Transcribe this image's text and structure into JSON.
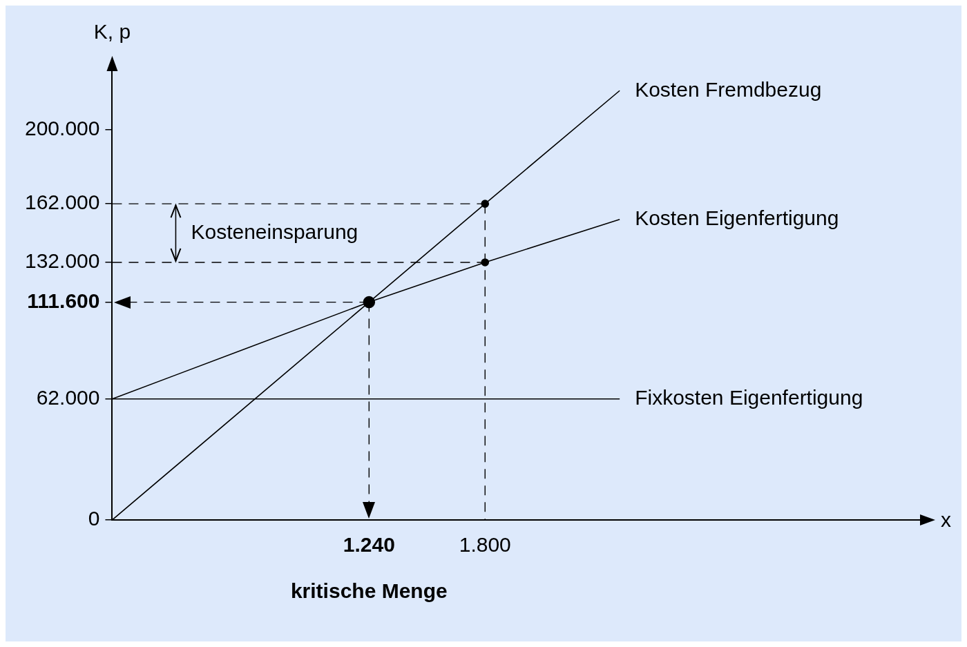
{
  "chart_data": {
    "type": "line",
    "xlabel": "x",
    "ylabel": "K, p",
    "xlim": [
      0,
      3900
    ],
    "ylim": [
      0,
      230000
    ],
    "xticks": [
      {
        "value": 1240,
        "label": "1.240"
      },
      {
        "value": 1800,
        "label": "1.800"
      }
    ],
    "yticks": [
      0,
      {
        "value": 62000,
        "label": "62.000"
      },
      {
        "value": 111600,
        "label": "111.600"
      },
      {
        "value": 132000,
        "label": "132.000"
      },
      {
        "value": 162000,
        "label": "162.000"
      },
      {
        "value": 200000,
        "label": "200.000"
      }
    ],
    "grid": false,
    "legend": false,
    "line_style": "solid",
    "series": [
      {
        "name": "Kosten Fremdbezug",
        "color": "#000000",
        "x": [
          0,
          1240,
          1800,
          2450
        ],
        "values": [
          0,
          111600,
          162000,
          220000
        ]
      },
      {
        "name": "Kosten Eigenfertigung",
        "color": "#000000",
        "x": [
          0,
          1240,
          1800,
          2450
        ],
        "values": [
          62000,
          111600,
          132000,
          154000
        ]
      },
      {
        "name": "Fixkosten Eigenfertigung",
        "color": "#000000",
        "x": [
          0,
          2450
        ],
        "values": [
          62000,
          62000
        ]
      },
      {
        "type": "scatter",
        "color": "#000000",
        "x": [
          1240
        ],
        "values": [
          111600
        ]
      },
      {
        "type": "scatter",
        "color": "#000000",
        "x": [
          1800,
          1800
        ],
        "values": [
          162000,
          132000
        ]
      }
    ],
    "ref_lines": [
      {
        "axis": "y",
        "value": 162000,
        "line_style": "dashed"
      },
      {
        "axis": "y",
        "value": 132000,
        "line_style": "dashed"
      },
      {
        "axis": "y",
        "value": 111600,
        "line_style": "dashed"
      },
      {
        "axis": "x",
        "value": 1240,
        "line_style": "dashed"
      },
      {
        "axis": "x",
        "value": 1800,
        "line_style": "dashed"
      }
    ],
    "annotations": [
      "Kosteneinsparung",
      "kritische Menge"
    ]
  }
}
